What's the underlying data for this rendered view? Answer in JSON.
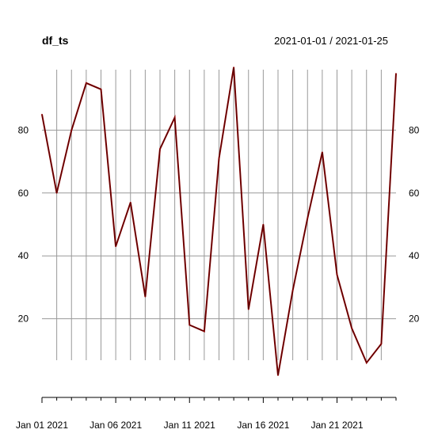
{
  "chart_data": {
    "type": "line",
    "title": "df_ts",
    "date_range_label": "2021-01-01 / 2021-01-25",
    "x": [
      "2021-01-01",
      "2021-01-02",
      "2021-01-03",
      "2021-01-04",
      "2021-01-05",
      "2021-01-06",
      "2021-01-07",
      "2021-01-08",
      "2021-01-09",
      "2021-01-10",
      "2021-01-11",
      "2021-01-12",
      "2021-01-13",
      "2021-01-14",
      "2021-01-15",
      "2021-01-16",
      "2021-01-17",
      "2021-01-18",
      "2021-01-19",
      "2021-01-20",
      "2021-01-21",
      "2021-01-22",
      "2021-01-23",
      "2021-01-24",
      "2021-01-25"
    ],
    "values": [
      85,
      60,
      80,
      95,
      93,
      43,
      57,
      27,
      74,
      84,
      18,
      16,
      71,
      100,
      23,
      50,
      2,
      29,
      52,
      73,
      34,
      17,
      6,
      12,
      98
    ],
    "x_tick_labels": [
      "Jan 01 2021",
      "Jan 06 2021",
      "Jan 11 2021",
      "Jan 16 2021",
      "Jan 21 2021"
    ],
    "y_ticks": [
      20,
      40,
      60,
      80
    ],
    "ylim": [
      0,
      100
    ],
    "grid": true,
    "line_color": "#8B0000",
    "grid_color": "#999999"
  }
}
